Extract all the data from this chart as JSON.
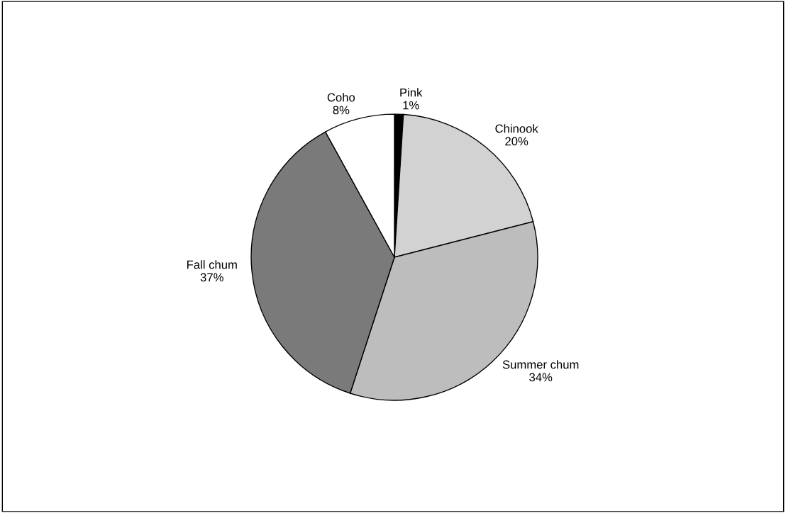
{
  "chart_data": {
    "type": "pie",
    "categories": [
      "Pink",
      "Chinook",
      "Summer chum",
      "Fall chum",
      "Coho"
    ],
    "values": [
      1,
      20,
      34,
      37,
      8
    ],
    "value_labels": [
      "1%",
      "20%",
      "34%",
      "37%",
      "8%"
    ],
    "colors": [
      "#000000",
      "#d2d2d2",
      "#bdbdbd",
      "#7a7a7a",
      "#ffffff"
    ]
  }
}
